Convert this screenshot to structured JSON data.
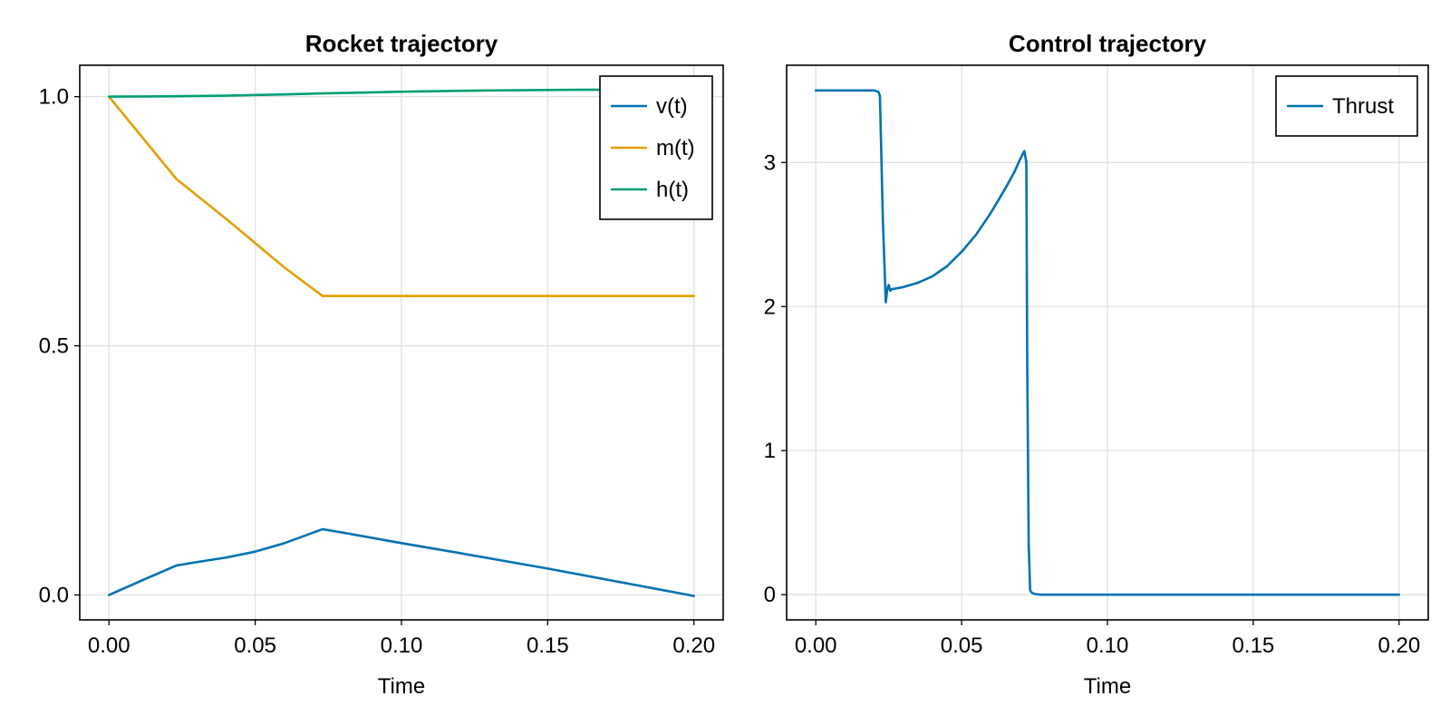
{
  "chart_data": [
    {
      "type": "line",
      "title": "Rocket trajectory",
      "xlabel": "Time",
      "ylabel": "",
      "xlim": [
        -0.01,
        0.21
      ],
      "ylim": [
        -0.05,
        1.063
      ],
      "xticks": [
        0.0,
        0.05,
        0.1,
        0.15,
        0.2
      ],
      "xtick_labels": [
        "0.00",
        "0.05",
        "0.10",
        "0.15",
        "0.20"
      ],
      "yticks": [
        0.0,
        0.5,
        1.0
      ],
      "ytick_labels": [
        "0.0",
        "0.5",
        "1.0"
      ],
      "grid": true,
      "legend_position": "top-right",
      "series": [
        {
          "name": "v(t)",
          "color": "#0072b2",
          "x": [
            0.0,
            0.012,
            0.023,
            0.03,
            0.04,
            0.05,
            0.06,
            0.067,
            0.073,
            0.08,
            0.1,
            0.12,
            0.15,
            0.2
          ],
          "y": [
            0.0,
            0.031,
            0.059,
            0.066,
            0.075,
            0.087,
            0.104,
            0.119,
            0.132,
            0.125,
            0.104,
            0.084,
            0.053,
            -0.002
          ]
        },
        {
          "name": "m(t)",
          "color": "#e69f00",
          "x": [
            0.0,
            0.023,
            0.04,
            0.05,
            0.06,
            0.073,
            0.08,
            0.12,
            0.16,
            0.2
          ],
          "y": [
            1.0,
            0.835,
            0.755,
            0.706,
            0.657,
            0.6,
            0.6,
            0.6,
            0.6,
            0.6
          ]
        },
        {
          "name": "h(t)",
          "color": "#009e73",
          "x": [
            0.0,
            0.02,
            0.04,
            0.06,
            0.073,
            0.1,
            0.13,
            0.16,
            0.2
          ],
          "y": [
            1.0,
            1.0006,
            1.002,
            1.0045,
            1.0065,
            1.01,
            1.0125,
            1.0138,
            1.0142
          ]
        }
      ]
    },
    {
      "type": "line",
      "title": "Control trajectory",
      "xlabel": "Time",
      "ylabel": "",
      "xlim": [
        -0.01,
        0.21
      ],
      "ylim": [
        -0.175,
        3.675
      ],
      "xticks": [
        0.0,
        0.05,
        0.1,
        0.15,
        0.2
      ],
      "xtick_labels": [
        "0.00",
        "0.05",
        "0.10",
        "0.15",
        "0.20"
      ],
      "yticks": [
        0,
        1,
        2,
        3
      ],
      "ytick_labels": [
        "0",
        "1",
        "2",
        "3"
      ],
      "grid": true,
      "legend_position": "top-right",
      "series": [
        {
          "name": "Thrust",
          "color": "#0072b2",
          "x": [
            0.0,
            0.02,
            0.0215,
            0.022,
            0.023,
            0.024,
            0.0245,
            0.025,
            0.0255,
            0.026,
            0.03,
            0.035,
            0.04,
            0.045,
            0.05,
            0.055,
            0.06,
            0.065,
            0.068,
            0.07,
            0.0715,
            0.0722,
            0.0725,
            0.073,
            0.0735,
            0.074,
            0.075,
            0.077,
            0.08,
            0.1,
            0.15,
            0.2
          ],
          "y": [
            3.5,
            3.5,
            3.49,
            3.46,
            2.6,
            2.03,
            2.12,
            2.15,
            2.11,
            2.12,
            2.135,
            2.165,
            2.21,
            2.28,
            2.38,
            2.5,
            2.65,
            2.82,
            2.93,
            3.02,
            3.08,
            3.0,
            1.6,
            0.35,
            0.03,
            0.015,
            0.005,
            0.0,
            0.0,
            0.0,
            0.0,
            0.0
          ]
        }
      ]
    }
  ]
}
